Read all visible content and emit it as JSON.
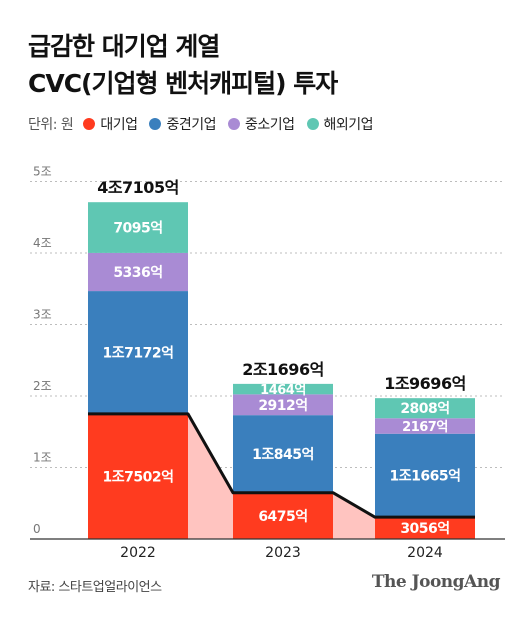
{
  "title_lines": [
    "급감한 대기업 계열",
    "CVC(기업형 벤처캐피털) 투자"
  ],
  "unit_label": "단위: 원",
  "legend": [
    {
      "name": "대기업",
      "color": "#ff3b1f"
    },
    {
      "name": "중견기업",
      "color": "#3a7fbd"
    },
    {
      "name": "중소기업",
      "color": "#a98bd4"
    },
    {
      "name": "해외기업",
      "color": "#5fc7b3"
    }
  ],
  "source": "자료: 스타트업얼라이언스",
  "brand": "The JoongAng",
  "chart_data": {
    "type": "bar",
    "stacked": true,
    "categories": [
      "2022",
      "2023",
      "2024"
    ],
    "yticks": [
      "0",
      "1조",
      "2조",
      "3조",
      "4조",
      "5조"
    ],
    "ylim": [
      0,
      5
    ],
    "series": [
      {
        "name": "대기업",
        "color": "#ff3b1f",
        "values": [
          1.7502,
          0.6475,
          0.3056
        ],
        "labels": [
          "1조7502억",
          "6475억",
          "3056억"
        ]
      },
      {
        "name": "중견기업",
        "color": "#3a7fbd",
        "values": [
          1.7172,
          1.0845,
          1.1665
        ],
        "labels": [
          "1조7172억",
          "1조845억",
          "1조1665억"
        ]
      },
      {
        "name": "중소기업",
        "color": "#a98bd4",
        "values": [
          0.5336,
          0.2912,
          0.2167
        ],
        "labels": [
          "5336억",
          "2912억",
          "2167억"
        ]
      },
      {
        "name": "해외기업",
        "color": "#5fc7b3",
        "values": [
          0.7095,
          0.1464,
          0.2808
        ],
        "labels": [
          "7095억",
          "1464억",
          "2808억"
        ]
      }
    ],
    "totals": [
      4.7105,
      2.1696,
      1.9696
    ],
    "total_labels": [
      "4조7105억",
      "2조1696억",
      "1조9696억"
    ]
  }
}
